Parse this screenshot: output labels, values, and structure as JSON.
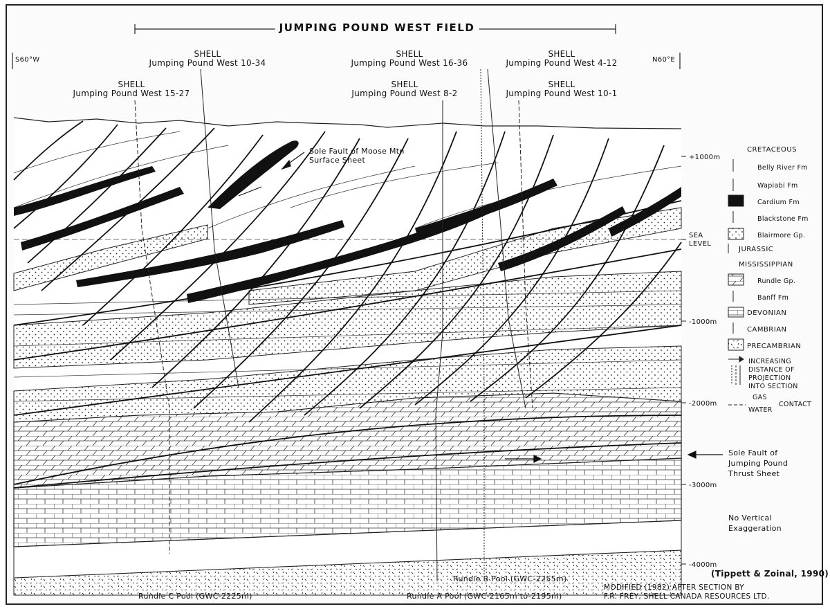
{
  "title": "JUMPING POUND WEST FIELD",
  "orientation": {
    "left": "S60°W",
    "right": "N60°E"
  },
  "wells": [
    {
      "company": "SHELL",
      "name": "Jumping Pound West 15-27"
    },
    {
      "company": "SHELL",
      "name": "Jumping Pound West 10-34"
    },
    {
      "company": "SHELL",
      "name": "Jumping Pound West 8-2"
    },
    {
      "company": "SHELL",
      "name": "Jumping Pound West 16-36"
    },
    {
      "company": "SHELL",
      "name": "Jumping Pound West 4-12"
    },
    {
      "company": "SHELL",
      "name": "Jumping Pound West 10-1"
    }
  ],
  "depth_labels": [
    "+1000m",
    "SEA",
    "LEVEL",
    "-1000m",
    "-2000m",
    "-3000m",
    "-4000m"
  ],
  "annotations": {
    "sole_fault_moose_1": "Sole Fault of Moose Mtn",
    "sole_fault_moose_2": "Surface Sheet",
    "sole_fault_jp_1": "Sole Fault of",
    "sole_fault_jp_2": "Jumping Pound",
    "sole_fault_jp_3": "Thrust Sheet",
    "no_vertical_1": "No Vertical",
    "no_vertical_2": "Exaggeration"
  },
  "pools": {
    "rundle_c": "Rundle C Pool (GWC-2225m)",
    "rundle_b": "Rundle B Pool (GWC-2255m)",
    "rundle_a": "Rundle A Pool (GWC-2165m to-2195m)"
  },
  "legend": {
    "cretaceous": "CRETACEOUS",
    "belly_river": "Belly River Fm",
    "wapiabi": "Wapiabi Fm",
    "cardium": "Cardium Fm",
    "blackstone": "Blackstone Fm",
    "blairmore": "Blairmore Gp.",
    "jurassic": "JURASSIC",
    "mississippian": "MISSISSIPPIAN",
    "rundle": "Rundle Gp.",
    "banff": "Banff Fm",
    "devonian": "DEVONIAN",
    "cambrian": "CAMBRIAN",
    "precambrian": "PRECAMBRIAN",
    "increasing_1": "INCREASING",
    "increasing_2": "DISTANCE OF",
    "increasing_3": "PROJECTION",
    "increasing_4": "INTO SECTION",
    "gas": "GAS",
    "water": "WATER",
    "contact": "CONTACT"
  },
  "citation": "(Tippett & Zoinal, 1990)",
  "credit_1": "MODIFIED (1982) AFTER SECTION BY",
  "credit_2": "F.R. FREY, SHELL CANADA RESOURCES LTD."
}
